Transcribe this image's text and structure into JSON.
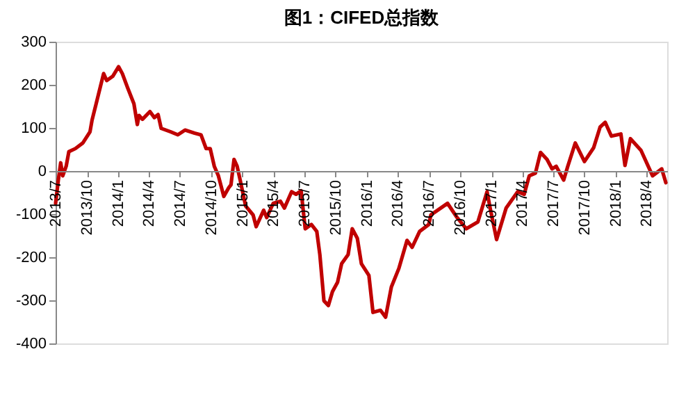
{
  "chart_data": {
    "type": "line",
    "title": "图1：CIFED总指数",
    "x": [
      "2013-07-01",
      "2013-07-09",
      "2013-07-16",
      "2013-07-22",
      "2013-08-01",
      "2013-08-09",
      "2013-08-28",
      "2013-09-19",
      "2013-10-10",
      "2013-10-16",
      "2013-10-28",
      "2013-11-19",
      "2013-11-28",
      "2013-12-16",
      "2014-01-02",
      "2014-01-13",
      "2014-01-28",
      "2014-02-16",
      "2014-02-26",
      "2014-03-03",
      "2014-03-13",
      "2014-04-04",
      "2014-04-17",
      "2014-04-28",
      "2014-05-07",
      "2014-06-04",
      "2014-06-25",
      "2014-07-16",
      "2014-08-13",
      "2014-09-01",
      "2014-09-16",
      "2014-09-28",
      "2014-10-10",
      "2014-10-22",
      "2014-11-07",
      "2014-11-22",
      "2014-11-28",
      "2014-12-07",
      "2014-12-16",
      "2014-12-25",
      "2015-01-10",
      "2015-02-01",
      "2015-02-10",
      "2015-03-04",
      "2015-03-13",
      "2015-04-01",
      "2015-04-22",
      "2015-05-04",
      "2015-05-25",
      "2015-06-07",
      "2015-06-22",
      "2015-07-04",
      "2015-07-22",
      "2015-08-07",
      "2015-08-16",
      "2015-08-28",
      "2015-09-10",
      "2015-09-22",
      "2015-10-07",
      "2015-10-19",
      "2015-11-07",
      "2015-11-19",
      "2015-12-04",
      "2015-12-16",
      "2016-01-07",
      "2016-01-19",
      "2016-02-10",
      "2016-02-25",
      "2016-03-13",
      "2016-04-04",
      "2016-04-28",
      "2016-05-13",
      "2016-06-04",
      "2016-07-01",
      "2016-07-07",
      "2016-08-25",
      "2016-09-22",
      "2016-10-19",
      "2016-11-22",
      "2016-12-19",
      "2016-12-28",
      "2017-01-16",
      "2017-02-13",
      "2017-03-19",
      "2017-04-07",
      "2017-04-22",
      "2017-05-10",
      "2017-05-25",
      "2017-06-13",
      "2017-06-28",
      "2017-07-10",
      "2017-08-01",
      "2017-08-13",
      "2017-09-04",
      "2017-10-01",
      "2017-10-28",
      "2017-11-16",
      "2017-12-01",
      "2017-12-19",
      "2018-01-16",
      "2018-01-28",
      "2018-02-13",
      "2018-03-16",
      "2018-04-19",
      "2018-05-16",
      "2018-05-28"
    ],
    "series": [
      {
        "color": "#c00000",
        "values": [
          -75,
          -21,
          19,
          -11,
          11,
          45,
          52,
          65,
          91,
          118,
          156,
          226,
          210,
          220,
          242,
          226,
          194,
          156,
          108,
          129,
          120,
          138,
          124,
          131,
          99,
          91,
          84,
          95,
          88,
          84,
          52,
          52,
          11,
          -11,
          -59,
          -38,
          -32,
          27,
          11,
          -21,
          -81,
          -102,
          -129,
          -91,
          -108,
          -75,
          -70,
          -86,
          -48,
          -54,
          -46,
          -134,
          -124,
          -140,
          -194,
          -301,
          -312,
          -280,
          -258,
          -215,
          -194,
          -134,
          -156,
          -215,
          -242,
          -328,
          -323,
          -339,
          -269,
          -226,
          -161,
          -177,
          -140,
          -124,
          -102,
          -75,
          -108,
          -134,
          -118,
          -48,
          -86,
          -159,
          -86,
          -48,
          -54,
          -11,
          -5,
          43,
          27,
          5,
          11,
          -21,
          11,
          65,
          22,
          54,
          102,
          113,
          81,
          86,
          13,
          75,
          48,
          -11,
          5,
          -27
        ]
      }
    ],
    "xlim": [
      "2013-07-01",
      "2018-06-01"
    ],
    "xticks": [
      {
        "value": "2013-07-01",
        "label": "2013/7"
      },
      {
        "value": "2013-10-01",
        "label": "2013/10"
      },
      {
        "value": "2014-01-01",
        "label": "2014/1"
      },
      {
        "value": "2014-04-01",
        "label": "2014/4"
      },
      {
        "value": "2014-07-01",
        "label": "2014/7"
      },
      {
        "value": "2014-10-01",
        "label": "2014/10"
      },
      {
        "value": "2015-01-01",
        "label": "2015/1"
      },
      {
        "value": "2015-04-01",
        "label": "2015/4"
      },
      {
        "value": "2015-07-01",
        "label": "2015/7"
      },
      {
        "value": "2015-10-01",
        "label": "2015/10"
      },
      {
        "value": "2016-01-01",
        "label": "2016/1"
      },
      {
        "value": "2016-04-01",
        "label": "2016/4"
      },
      {
        "value": "2016-07-01",
        "label": "2016/7"
      },
      {
        "value": "2016-10-01",
        "label": "2016/10"
      },
      {
        "value": "2017-01-01",
        "label": "2017/1"
      },
      {
        "value": "2017-04-01",
        "label": "2017/4"
      },
      {
        "value": "2017-07-01",
        "label": "2017/7"
      },
      {
        "value": "2017-10-01",
        "label": "2017/10"
      },
      {
        "value": "2018-01-01",
        "label": "2018/1"
      },
      {
        "value": "2018-04-01",
        "label": "2018/4"
      }
    ],
    "ylim": [
      -400,
      300
    ],
    "yticks": [
      -400,
      -300,
      -200,
      -100,
      0,
      100,
      200,
      300
    ],
    "grid": false,
    "marker": "none",
    "line_style": "solid"
  }
}
